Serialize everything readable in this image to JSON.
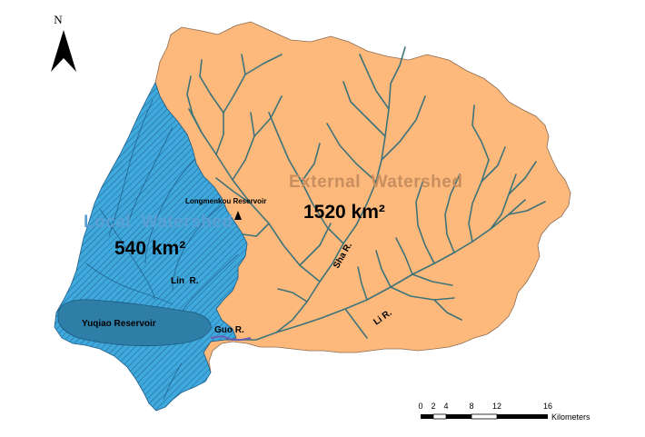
{
  "north_arrow": {
    "letter": "N"
  },
  "regions": {
    "external": {
      "name": "External  Watershed",
      "area": "1520 km²",
      "fill": "#fdb97c"
    },
    "local": {
      "name": "Local  Watershed",
      "area": "540 km²",
      "fill": "#3fa9dd"
    }
  },
  "reservoirs": {
    "longmenkou": "Longmenkou Reservoir",
    "yuqiao": "Yuqiao Reservoir"
  },
  "rivers": {
    "sha": "Sha R.",
    "li": "Li R.",
    "lin": "Lin  R.",
    "guo": "Guo R."
  },
  "scale_bar": {
    "ticks": [
      "0",
      "2",
      "4",
      "8",
      "12",
      "16"
    ],
    "unit": "Kilometers"
  },
  "colors": {
    "river": "#3d7379",
    "guo_river": "#6a5fb4",
    "reservoir": "#2f7ea8",
    "outline": "#7a6a5a"
  }
}
